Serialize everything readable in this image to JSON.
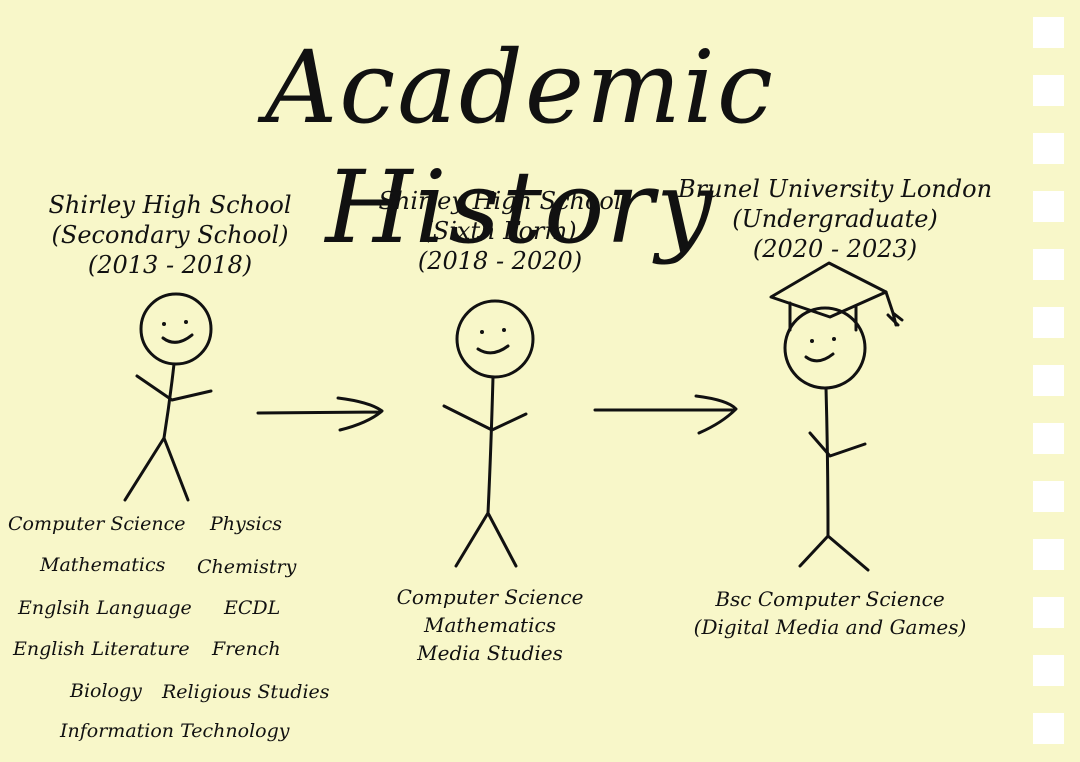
{
  "title": "Academic History",
  "stages": [
    {
      "institution": "Shirley High School",
      "level": "(Secondary School)",
      "years": "(2013 - 2018)",
      "subjects": [
        "Computer Science",
        "Physics",
        "Mathematics",
        "Chemistry",
        "Englsih Language",
        "ECDL",
        "English Literature",
        "French",
        "Biology",
        "Religious Studies",
        "Information Technology"
      ]
    },
    {
      "institution": "Shirley High School",
      "level": "(Sixth Form)",
      "years": "(2018 - 2020)",
      "subjects": [
        "Computer Science",
        "Mathematics",
        "Media Studies"
      ]
    },
    {
      "institution": "Brunel University London",
      "level": "(Undergraduate)",
      "years": "(2020 - 2023)",
      "subjects": [
        "Bsc Computer Science",
        "(Digital Media and Games)"
      ]
    }
  ],
  "colors": {
    "background": "#f8f7c9",
    "ink": "#111111",
    "strip_squares": "#ffffff"
  }
}
